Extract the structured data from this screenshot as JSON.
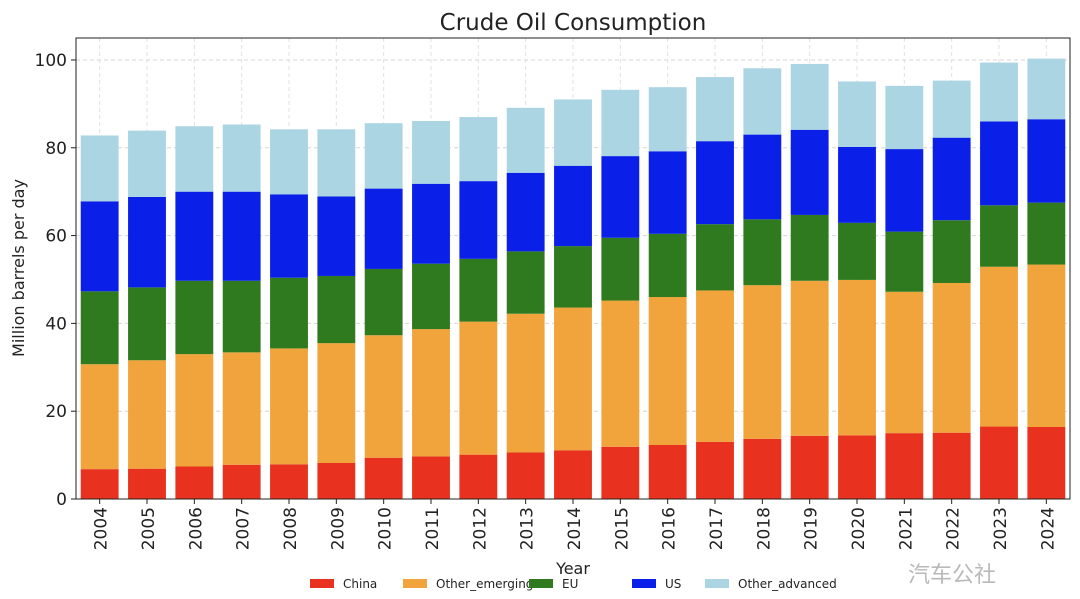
{
  "watermark": "汽车公社",
  "chart_data": {
    "type": "bar",
    "stacked": true,
    "title": "Crude Oil Consumption",
    "xlabel": "Year",
    "ylabel": "Million barrels per day",
    "ylim": [
      0,
      105
    ],
    "yticks": [
      0,
      20,
      40,
      60,
      80,
      100
    ],
    "grid": true,
    "legend_position": "bottom",
    "categories": [
      "2004",
      "2005",
      "2006",
      "2007",
      "2008",
      "2009",
      "2010",
      "2011",
      "2012",
      "2013",
      "2014",
      "2015",
      "2016",
      "2017",
      "2018",
      "2019",
      "2020",
      "2021",
      "2022",
      "2023",
      "2024"
    ],
    "series": [
      {
        "name": "China",
        "color": "#e8311f",
        "values": [
          6.8,
          6.9,
          7.4,
          7.8,
          7.9,
          8.2,
          9.4,
          9.7,
          10.1,
          10.6,
          11.1,
          11.9,
          12.3,
          13.0,
          13.7,
          14.4,
          14.5,
          15.0,
          15.1,
          16.5,
          16.4
        ]
      },
      {
        "name": "Other_emerging",
        "color": "#f0a43b",
        "values": [
          23.9,
          24.7,
          25.6,
          25.6,
          26.4,
          27.3,
          27.9,
          29.0,
          30.3,
          31.6,
          32.5,
          33.3,
          33.7,
          34.5,
          35.0,
          35.3,
          35.4,
          32.2,
          34.1,
          36.4,
          37.0
        ]
      },
      {
        "name": "EU",
        "color": "#2f7a1e",
        "values": [
          16.6,
          16.6,
          16.7,
          16.3,
          16.1,
          15.3,
          15.1,
          14.9,
          14.3,
          14.2,
          14.0,
          14.3,
          14.4,
          15.1,
          15.0,
          15.0,
          13.0,
          13.7,
          14.3,
          14.0,
          14.1
        ]
      },
      {
        "name": "US",
        "color": "#0a20e8",
        "values": [
          20.5,
          20.6,
          20.3,
          20.3,
          19.0,
          18.1,
          18.3,
          18.2,
          17.7,
          17.9,
          18.3,
          18.6,
          18.8,
          18.9,
          19.3,
          19.4,
          17.3,
          18.8,
          18.8,
          19.1,
          19.0
        ]
      },
      {
        "name": "Other_advanced",
        "color": "#abd5e2",
        "values": [
          15.0,
          15.1,
          14.9,
          15.3,
          14.8,
          15.3,
          14.9,
          14.3,
          14.6,
          14.8,
          15.1,
          15.1,
          14.6,
          14.6,
          15.1,
          15.0,
          14.9,
          14.4,
          13.0,
          13.4,
          13.8
        ]
      }
    ]
  }
}
